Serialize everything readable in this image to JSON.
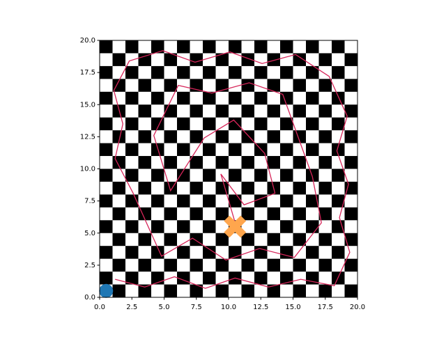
{
  "chart_data": {
    "type": "maze",
    "board": {
      "size": 20,
      "colors": [
        "#000000",
        "#ffffff"
      ]
    },
    "xlim": [
      0,
      20
    ],
    "ylim": [
      0,
      20
    ],
    "xticks": [
      {
        "value": 0,
        "label": "0.0"
      },
      {
        "value": 2.5,
        "label": "2.5"
      },
      {
        "value": 5,
        "label": "5.0"
      },
      {
        "value": 7.5,
        "label": "7.5"
      },
      {
        "value": 10,
        "label": "10.0"
      },
      {
        "value": 12.5,
        "label": "12.5"
      },
      {
        "value": 15,
        "label": "15.0"
      },
      {
        "value": 17.5,
        "label": "17.5"
      },
      {
        "value": 20,
        "label": "20.0"
      }
    ],
    "yticks": [
      {
        "value": 0,
        "label": "0.0"
      },
      {
        "value": 2.5,
        "label": "2.5"
      },
      {
        "value": 5,
        "label": "5.0"
      },
      {
        "value": 7.5,
        "label": "7.5"
      },
      {
        "value": 10,
        "label": "10.0"
      },
      {
        "value": 12.5,
        "label": "12.5"
      },
      {
        "value": 15,
        "label": "15.0"
      },
      {
        "value": 17.5,
        "label": "17.5"
      },
      {
        "value": 20,
        "label": "20.0"
      }
    ],
    "series": [
      {
        "name": "path",
        "color": "#d6265a",
        "x": [
          1.2,
          3.5,
          5.8,
          8.2,
          10.5,
          13.1,
          15.6,
          18.2,
          19.4,
          18.6,
          19.3,
          18.4,
          19.2,
          17.8,
          15.2,
          12.6,
          10.1,
          7.4,
          4.9,
          2.3,
          1.1,
          1.8,
          1.2,
          2.6,
          4.8,
          7.2,
          9.8,
          12.4,
          15.1,
          17.2,
          16.5,
          14.2,
          11.6,
          8.7,
          6.1,
          4.2,
          5.5,
          8.1,
          10.4,
          12.8,
          13.6,
          11.2,
          9.4,
          10.6
        ],
        "y": [
          1.4,
          0.8,
          1.6,
          0.7,
          1.5,
          0.8,
          1.4,
          0.9,
          3.5,
          6.2,
          8.8,
          11.4,
          14.1,
          17.2,
          18.9,
          18.2,
          19.1,
          18.3,
          19.2,
          18.4,
          16.1,
          13.5,
          10.8,
          8.1,
          3.2,
          4.6,
          2.9,
          3.8,
          3.1,
          5.8,
          9.4,
          15.8,
          16.7,
          15.9,
          16.5,
          12.6,
          8.3,
          12.4,
          13.8,
          11.2,
          8.1,
          7.2,
          9.6,
          5.5
        ]
      },
      {
        "name": "start",
        "color": "#1f77b4",
        "x": [
          0.5
        ],
        "y": [
          0.5
        ]
      },
      {
        "name": "goal",
        "color": "#ffa64d",
        "x": [
          10.5
        ],
        "y": [
          5.5
        ]
      }
    ]
  }
}
